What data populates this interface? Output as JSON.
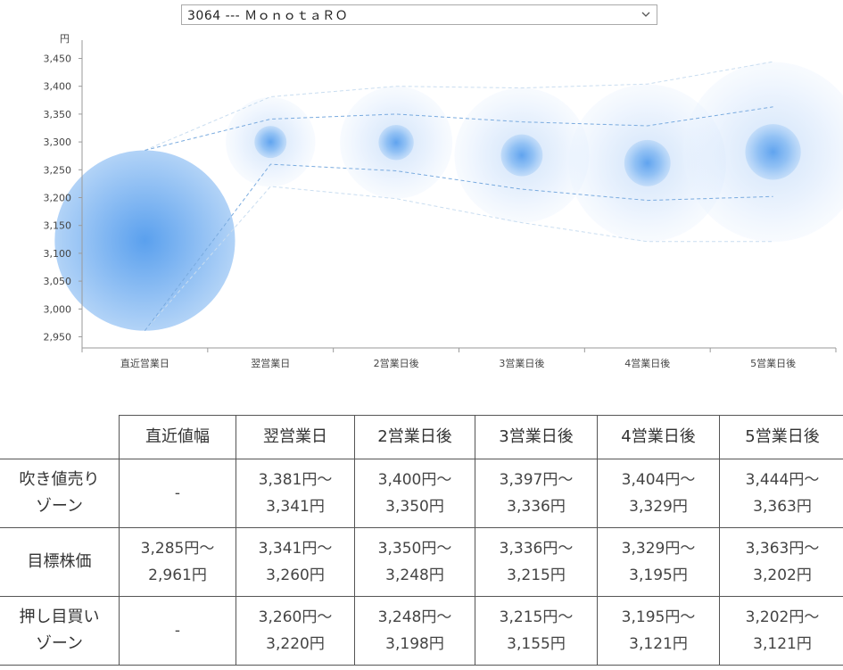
{
  "selector": {
    "value": "3064 --- ＭｏｎｏｔａＲＯ"
  },
  "chart_data": {
    "type": "bubble-range",
    "yunit": "円",
    "ylim": [
      2930,
      3470
    ],
    "yticks": [
      2950,
      3000,
      3050,
      3100,
      3150,
      3200,
      3250,
      3300,
      3350,
      3400,
      3450
    ],
    "ytick_labels": [
      "2,950",
      "3,000",
      "3,050",
      "3,100",
      "3,150",
      "3,200",
      "3,250",
      "3,300",
      "3,350",
      "3,400",
      "3,450"
    ],
    "categories": [
      "直近営業日",
      "翌営業日",
      "2営業日後",
      "3営業日後",
      "4営業日後",
      "5営業日後"
    ],
    "sell_zone_high": [
      null,
      3381,
      3400,
      3397,
      3404,
      3444
    ],
    "target_high": [
      3285,
      3341,
      3350,
      3336,
      3329,
      3363
    ],
    "target_center": [
      3123,
      3300,
      3299,
      3276,
      3262,
      3282
    ],
    "target_low": [
      2961,
      3260,
      3248,
      3215,
      3195,
      3202
    ],
    "buy_zone_low": [
      null,
      3220,
      3198,
      3155,
      3121,
      3121
    ],
    "grid": false,
    "colors": {
      "bubble_core": "#5aa0ee",
      "bubble_outer": "#a9ccf6",
      "axis": "#9a9a9a",
      "dash_outer": "#c9ddf0",
      "dash_inner": "#7aabdf"
    }
  },
  "table": {
    "headers": [
      "直近値幅",
      "翌営業日",
      "2営業日後",
      "3営業日後",
      "4営業日後",
      "5営業日後"
    ],
    "rows": [
      {
        "label": [
          "吹き値売り",
          "ゾーン"
        ],
        "cells": [
          [
            "-"
          ],
          [
            "3,381円～",
            "3,341円"
          ],
          [
            "3,400円～",
            "3,350円"
          ],
          [
            "3,397円～",
            "3,336円"
          ],
          [
            "3,404円～",
            "3,329円"
          ],
          [
            "3,444円～",
            "3,363円"
          ]
        ]
      },
      {
        "label": [
          "目標株価"
        ],
        "cells": [
          [
            "3,285円～",
            "2,961円"
          ],
          [
            "3,341円～",
            "3,260円"
          ],
          [
            "3,350円～",
            "3,248円"
          ],
          [
            "3,336円～",
            "3,215円"
          ],
          [
            "3,329円～",
            "3,195円"
          ],
          [
            "3,363円～",
            "3,202円"
          ]
        ]
      },
      {
        "label": [
          "押し目買い",
          "ゾーン"
        ],
        "cells": [
          [
            "-"
          ],
          [
            "3,260円～",
            "3,220円"
          ],
          [
            "3,248円～",
            "3,198円"
          ],
          [
            "3,215円～",
            "3,155円"
          ],
          [
            "3,195円～",
            "3,121円"
          ],
          [
            "3,202円～",
            "3,121円"
          ]
        ]
      }
    ]
  }
}
